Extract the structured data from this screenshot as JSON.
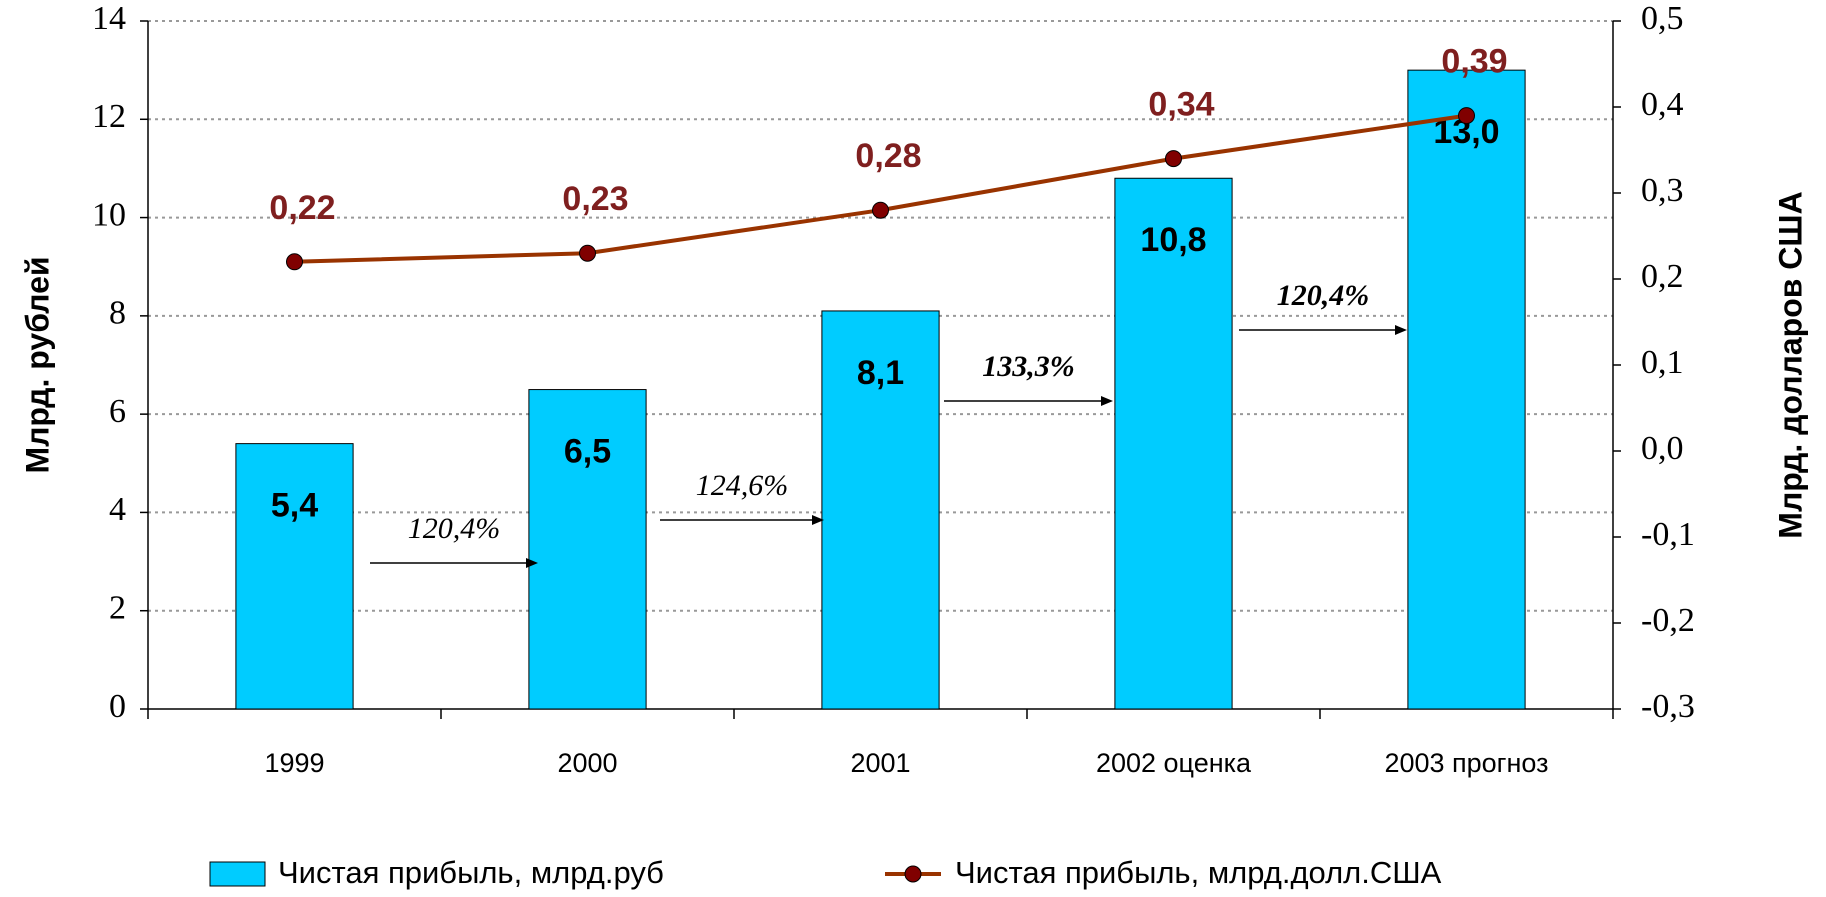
{
  "chart_data": {
    "type": "bar",
    "categories": [
      "1999",
      "2000",
      "2001",
      "2002 оценка",
      "2003 прогноз"
    ],
    "series": [
      {
        "name": "Чистая прибыль, млрд.руб",
        "type": "bar",
        "color": "#00ccff",
        "values": [
          5.4,
          6.5,
          8.1,
          10.8,
          13.0
        ],
        "value_labels": [
          "5,4",
          "6,5",
          "8,1",
          "10,8",
          "13,0"
        ]
      },
      {
        "name": "Чистая прибыль, млрд.долл.США",
        "type": "line",
        "axis": "y2",
        "color": "#993300",
        "marker_color": "#800000",
        "label_color": "#7f1f1f",
        "values": [
          0.22,
          0.23,
          0.28,
          0.34,
          0.39
        ],
        "value_labels": [
          "0,22",
          "0,23",
          "0,28",
          "0,34",
          "0,39"
        ]
      }
    ],
    "ylabel": "Млрд. рублей",
    "y2label": "Млрд. долларов США",
    "ylim": [
      0,
      14
    ],
    "yticks": [
      0,
      2,
      4,
      6,
      8,
      10,
      12,
      14
    ],
    "y2lim": [
      -0.3,
      0.5
    ],
    "y2ticks": [
      {
        "value": 0.5,
        "label": "0,5"
      },
      {
        "value": 0.4,
        "label": "0,4"
      },
      {
        "value": 0.3,
        "label": "0,3"
      },
      {
        "value": 0.2,
        "label": "0,2"
      },
      {
        "value": 0.1,
        "label": "0,1"
      },
      {
        "value": 0.0,
        "label": "0,0"
      },
      {
        "value": -0.1,
        "label": "-0,1"
      },
      {
        "value": -0.2,
        "label": "-0,2"
      },
      {
        "value": -0.3,
        "label": "-0,3"
      }
    ],
    "grid": true,
    "legend": "bottom",
    "annotations": [
      "120,4%",
      "124,6%",
      "133,3%",
      "120,4%"
    ]
  }
}
